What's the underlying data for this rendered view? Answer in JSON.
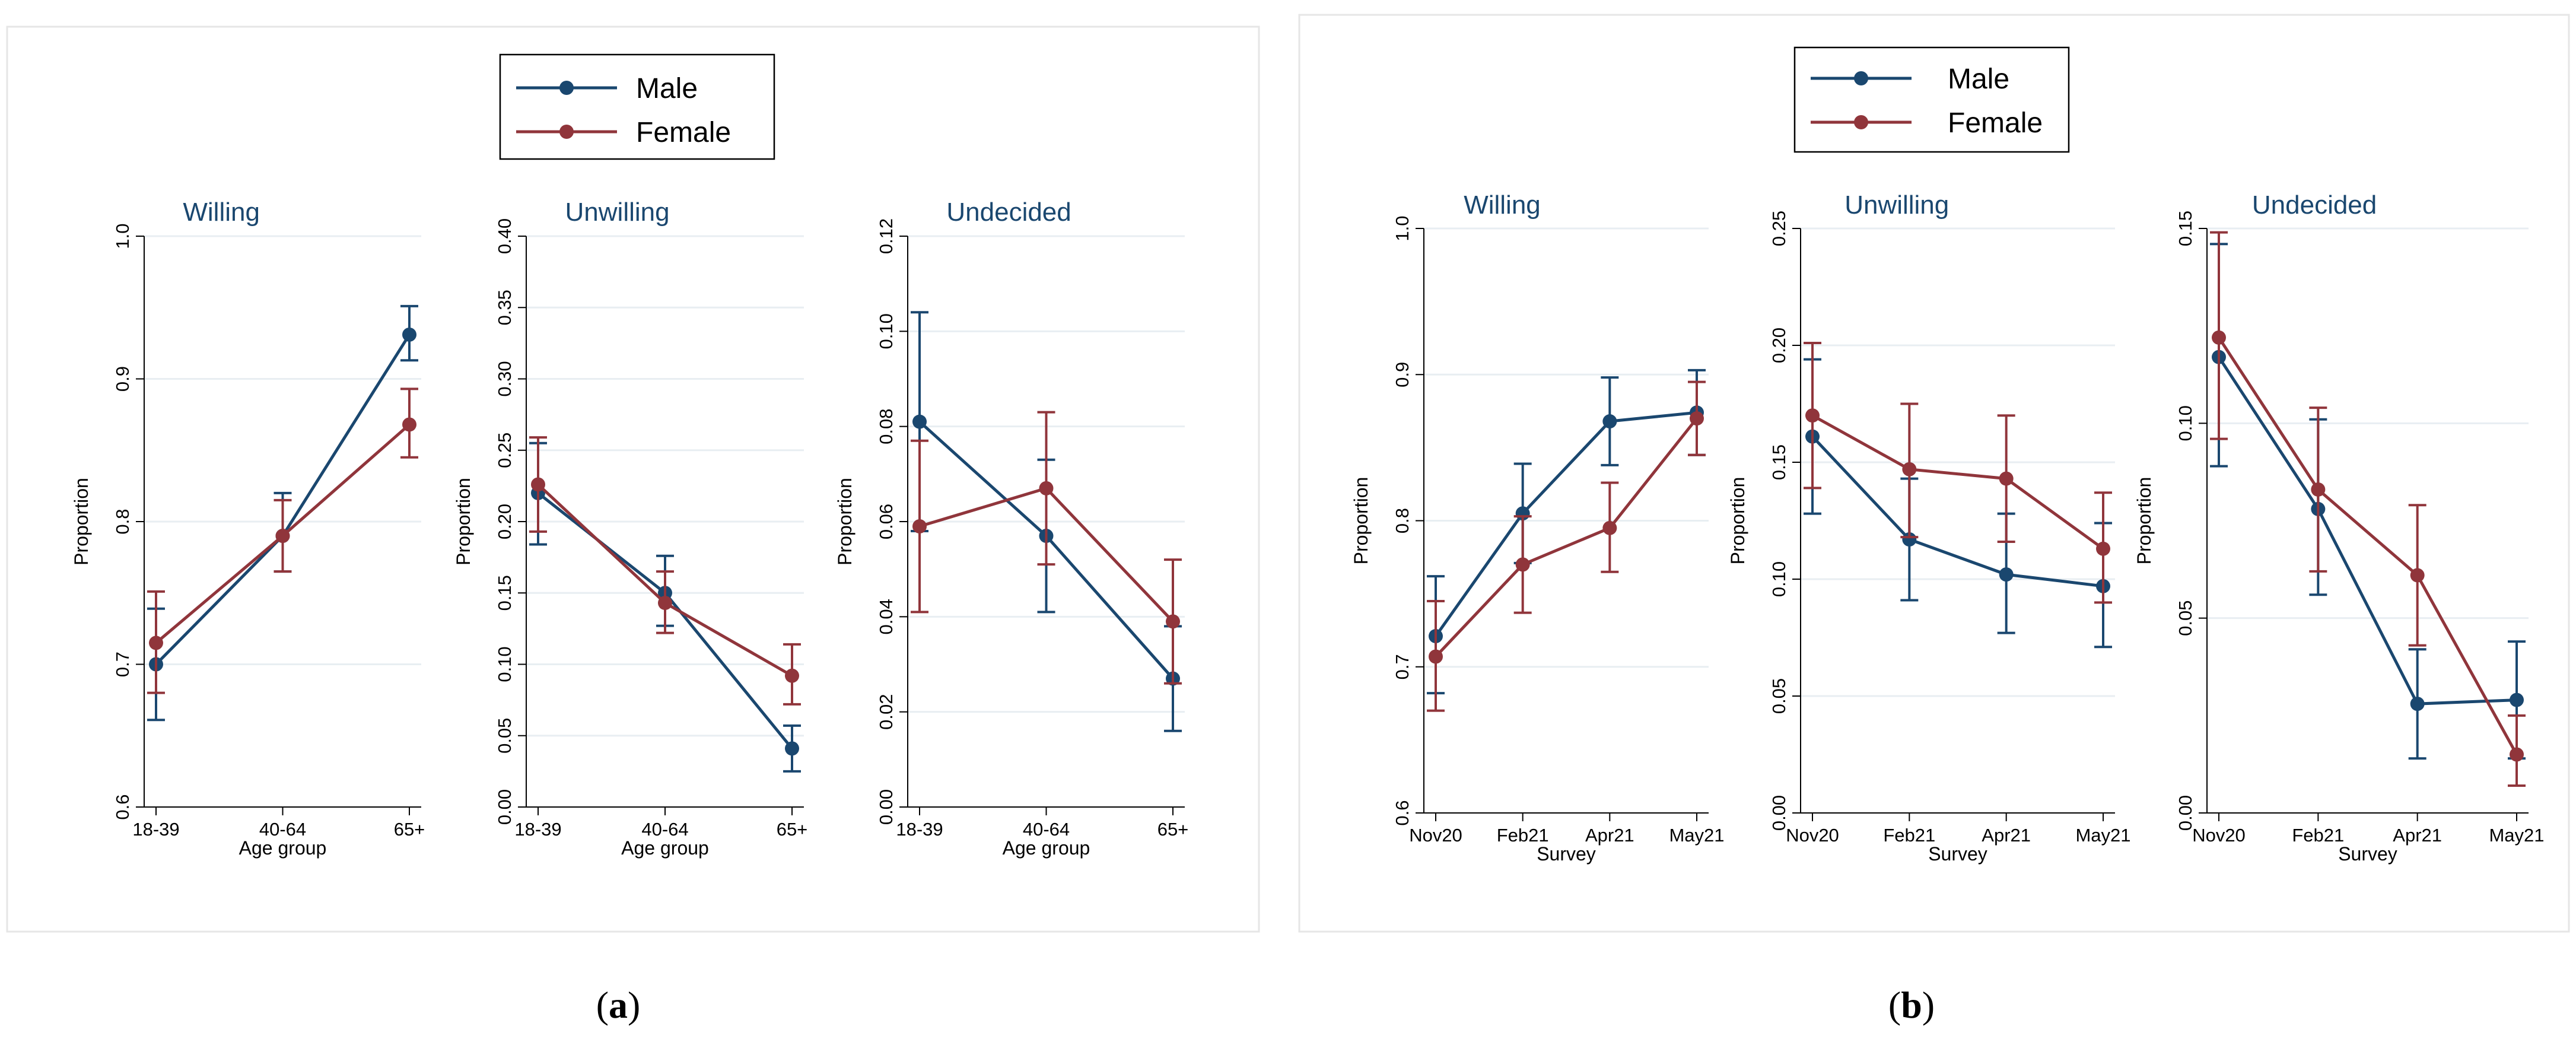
{
  "captions": [
    {
      "open": "(",
      "letter": "a",
      "close": ")"
    },
    {
      "open": "(",
      "letter": "b",
      "close": ")"
    }
  ],
  "legend": [
    {
      "name": "Male",
      "color": "#1a476f"
    },
    {
      "name": "Female",
      "color": "#90353b"
    }
  ],
  "chart_data": [
    {
      "type": "line",
      "title": "Willing",
      "xlabel": "Age group",
      "ylabel": "Proportion",
      "categories": [
        "18-39",
        "40-64",
        "65+"
      ],
      "ylim": [
        0.6,
        1.0
      ],
      "yticks": [
        0.6,
        0.7,
        0.8,
        0.9,
        1.0
      ],
      "ytick_labels": [
        "0.6",
        "0.7",
        "0.8",
        "0.9",
        "1.0"
      ],
      "grid": true,
      "series": [
        {
          "name": "Male",
          "values": [
            0.7,
            0.79,
            0.931
          ],
          "lower": [
            0.661,
            0.765,
            0.913
          ],
          "upper": [
            0.739,
            0.82,
            0.951
          ]
        },
        {
          "name": "Female",
          "values": [
            0.715,
            0.79,
            0.868
          ],
          "lower": [
            0.68,
            0.765,
            0.845
          ],
          "upper": [
            0.751,
            0.815,
            0.893
          ]
        }
      ]
    },
    {
      "type": "line",
      "title": "Unwilling",
      "xlabel": "Age group",
      "ylabel": "Proportion",
      "categories": [
        "18-39",
        "40-64",
        "65+"
      ],
      "ylim": [
        0.0,
        0.4
      ],
      "yticks": [
        0.0,
        0.05,
        0.1,
        0.15,
        0.2,
        0.25,
        0.3,
        0.35,
        0.4
      ],
      "ytick_labels": [
        "0.00",
        "0.05",
        "0.10",
        "0.15",
        "0.20",
        "0.25",
        "0.30",
        "0.35",
        "0.40"
      ],
      "grid": true,
      "series": [
        {
          "name": "Male",
          "values": [
            0.22,
            0.15,
            0.041
          ],
          "lower": [
            0.184,
            0.127,
            0.025
          ],
          "upper": [
            0.255,
            0.176,
            0.057
          ]
        },
        {
          "name": "Female",
          "values": [
            0.226,
            0.143,
            0.092
          ],
          "lower": [
            0.193,
            0.122,
            0.072
          ],
          "upper": [
            0.259,
            0.165,
            0.114
          ]
        }
      ]
    },
    {
      "type": "line",
      "title": "Undecided",
      "xlabel": "Age group",
      "ylabel": "Proportion",
      "categories": [
        "18-39",
        "40-64",
        "65+"
      ],
      "ylim": [
        0.0,
        0.12
      ],
      "yticks": [
        0.0,
        0.02,
        0.04,
        0.06,
        0.08,
        0.1,
        0.12
      ],
      "ytick_labels": [
        "0.00",
        "0.02",
        "0.04",
        "0.06",
        "0.08",
        "0.10",
        "0.12"
      ],
      "grid": true,
      "series": [
        {
          "name": "Male",
          "values": [
            0.081,
            0.057,
            0.027
          ],
          "lower": [
            0.058,
            0.041,
            0.016
          ],
          "upper": [
            0.104,
            0.073,
            0.038
          ]
        },
        {
          "name": "Female",
          "values": [
            0.059,
            0.067,
            0.039
          ],
          "lower": [
            0.041,
            0.051,
            0.026
          ],
          "upper": [
            0.077,
            0.083,
            0.052
          ]
        }
      ]
    },
    {
      "type": "line",
      "title": "Willing",
      "xlabel": "Survey",
      "ylabel": "Proportion",
      "categories": [
        "Nov20",
        "Feb21",
        "Apr21",
        "May21"
      ],
      "ylim": [
        0.6,
        1.0
      ],
      "yticks": [
        0.6,
        0.7,
        0.8,
        0.9,
        1.0
      ],
      "ytick_labels": [
        "0.6",
        "0.7",
        "0.8",
        "0.9",
        "1.0"
      ],
      "grid": true,
      "series": [
        {
          "name": "Male",
          "values": [
            0.721,
            0.805,
            0.868,
            0.874
          ],
          "lower": [
            0.682,
            0.771,
            0.838,
            0.845
          ],
          "upper": [
            0.762,
            0.839,
            0.898,
            0.903
          ]
        },
        {
          "name": "Female",
          "values": [
            0.707,
            0.77,
            0.795,
            0.87
          ],
          "lower": [
            0.67,
            0.737,
            0.765,
            0.845
          ],
          "upper": [
            0.745,
            0.803,
            0.826,
            0.895
          ]
        }
      ]
    },
    {
      "type": "line",
      "title": "Unwilling",
      "xlabel": "Survey",
      "ylabel": "Proportion",
      "categories": [
        "Nov20",
        "Feb21",
        "Apr21",
        "May21"
      ],
      "ylim": [
        0.0,
        0.25
      ],
      "yticks": [
        0.0,
        0.05,
        0.1,
        0.15,
        0.2,
        0.25
      ],
      "ytick_labels": [
        "0.00",
        "0.05",
        "0.10",
        "0.15",
        "0.20",
        "0.25"
      ],
      "grid": true,
      "series": [
        {
          "name": "Male",
          "values": [
            0.161,
            0.117,
            0.102,
            0.097
          ],
          "lower": [
            0.128,
            0.091,
            0.077,
            0.071
          ],
          "upper": [
            0.194,
            0.143,
            0.128,
            0.124
          ]
        },
        {
          "name": "Female",
          "values": [
            0.17,
            0.147,
            0.143,
            0.113
          ],
          "lower": [
            0.139,
            0.118,
            0.116,
            0.09
          ],
          "upper": [
            0.201,
            0.175,
            0.17,
            0.137
          ]
        }
      ]
    },
    {
      "type": "line",
      "title": "Undecided",
      "xlabel": "Survey",
      "ylabel": "Proportion",
      "categories": [
        "Nov20",
        "Feb21",
        "Apr21",
        "May21"
      ],
      "ylim": [
        0.0,
        0.15
      ],
      "yticks": [
        0.0,
        0.05,
        0.1,
        0.15
      ],
      "ytick_labels": [
        "0.00",
        "0.05",
        "0.10",
        "0.15"
      ],
      "grid": true,
      "series": [
        {
          "name": "Male",
          "values": [
            0.117,
            0.078,
            0.028,
            0.029
          ],
          "lower": [
            0.089,
            0.056,
            0.014,
            0.014
          ],
          "upper": [
            0.146,
            0.101,
            0.042,
            0.044
          ]
        },
        {
          "name": "Female",
          "values": [
            0.122,
            0.083,
            0.061,
            0.015
          ],
          "lower": [
            0.096,
            0.062,
            0.043,
            0.007
          ],
          "upper": [
            0.149,
            0.104,
            0.079,
            0.025
          ]
        }
      ]
    }
  ]
}
